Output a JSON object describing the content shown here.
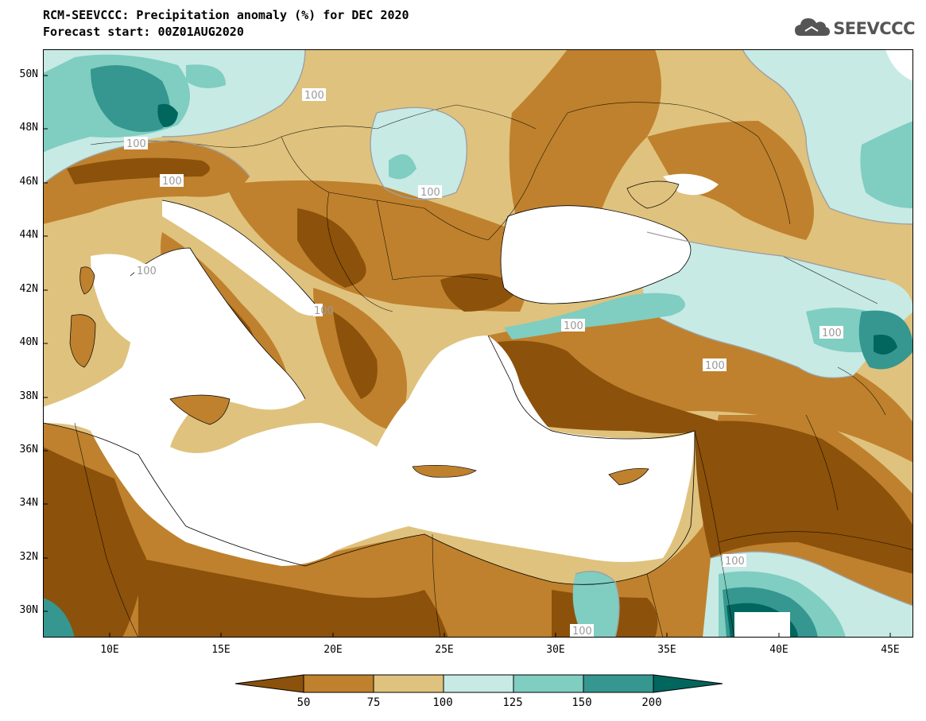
{
  "header": {
    "title": "RCM-SEEVCCC: Precipitation anomaly (%) for DEC 2020",
    "subtitle": "Forecast start: 00Z01AUG2020"
  },
  "logo": {
    "text": "SEEVCCC",
    "icon": "cloud-icon"
  },
  "map": {
    "variable": "Precipitation anomaly (%)",
    "lat_range": [
      29,
      51
    ],
    "lon_range": [
      7,
      46
    ],
    "lat_ticks": [
      "50N",
      "48N",
      "46N",
      "44N",
      "42N",
      "40N",
      "38N",
      "36N",
      "34N",
      "32N",
      "30N"
    ],
    "lon_ticks": [
      "10E",
      "15E",
      "20E",
      "25E",
      "30E",
      "35E",
      "40E",
      "45E"
    ],
    "contour_labels": [
      "100",
      "100",
      "100",
      "100",
      "100",
      "100",
      "100",
      "100",
      "100",
      "100",
      "100"
    ]
  },
  "colorbar": {
    "bins": [
      {
        "range": "<50",
        "color": "#8c510a"
      },
      {
        "range": "50-75",
        "color": "#bf812d"
      },
      {
        "range": "75-100",
        "color": "#dfc27d"
      },
      {
        "range": "100-125",
        "color": "#c7eae5"
      },
      {
        "range": "125-150",
        "color": "#80cdc1"
      },
      {
        "range": "150-200",
        "color": "#35978f"
      },
      {
        "range": ">200",
        "color": "#01665e"
      }
    ],
    "labels": [
      "50",
      "75",
      "100",
      "125",
      "150",
      "200"
    ]
  }
}
